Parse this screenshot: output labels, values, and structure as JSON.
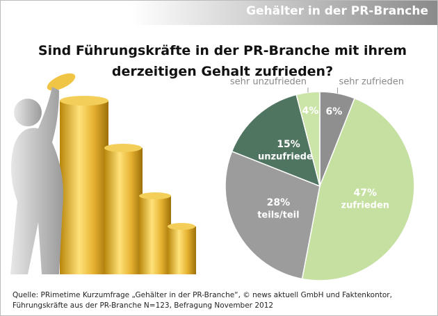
{
  "header": {
    "title": "Gehälter in der PR-Branche"
  },
  "chart_data": {
    "type": "pie",
    "title": "Sind Führungskräfte in der PR-Branche mit ihrem derzeitigen Gehalt zufrieden?",
    "categories": [
      "sehr zufrieden",
      "zufrieden",
      "teils/teil",
      "unzufrieden",
      "sehr unzufrieden"
    ],
    "values": [
      6,
      47,
      28,
      15,
      4
    ],
    "value_labels": [
      "6%",
      "47%",
      "28%",
      "15%",
      "4%"
    ],
    "colors": [
      "#8f8f8f",
      "#c6e0a2",
      "#9c9c9c",
      "#4f7560",
      "#cbe4a8"
    ]
  },
  "source": "Quelle: PRimetime Kurzumfrage „Gehälter in der PR-Branche“, © news aktuell GmbH und Faktenkontor, Führungskräfte aus der PR-Branche N=123, Befragung November 2012"
}
